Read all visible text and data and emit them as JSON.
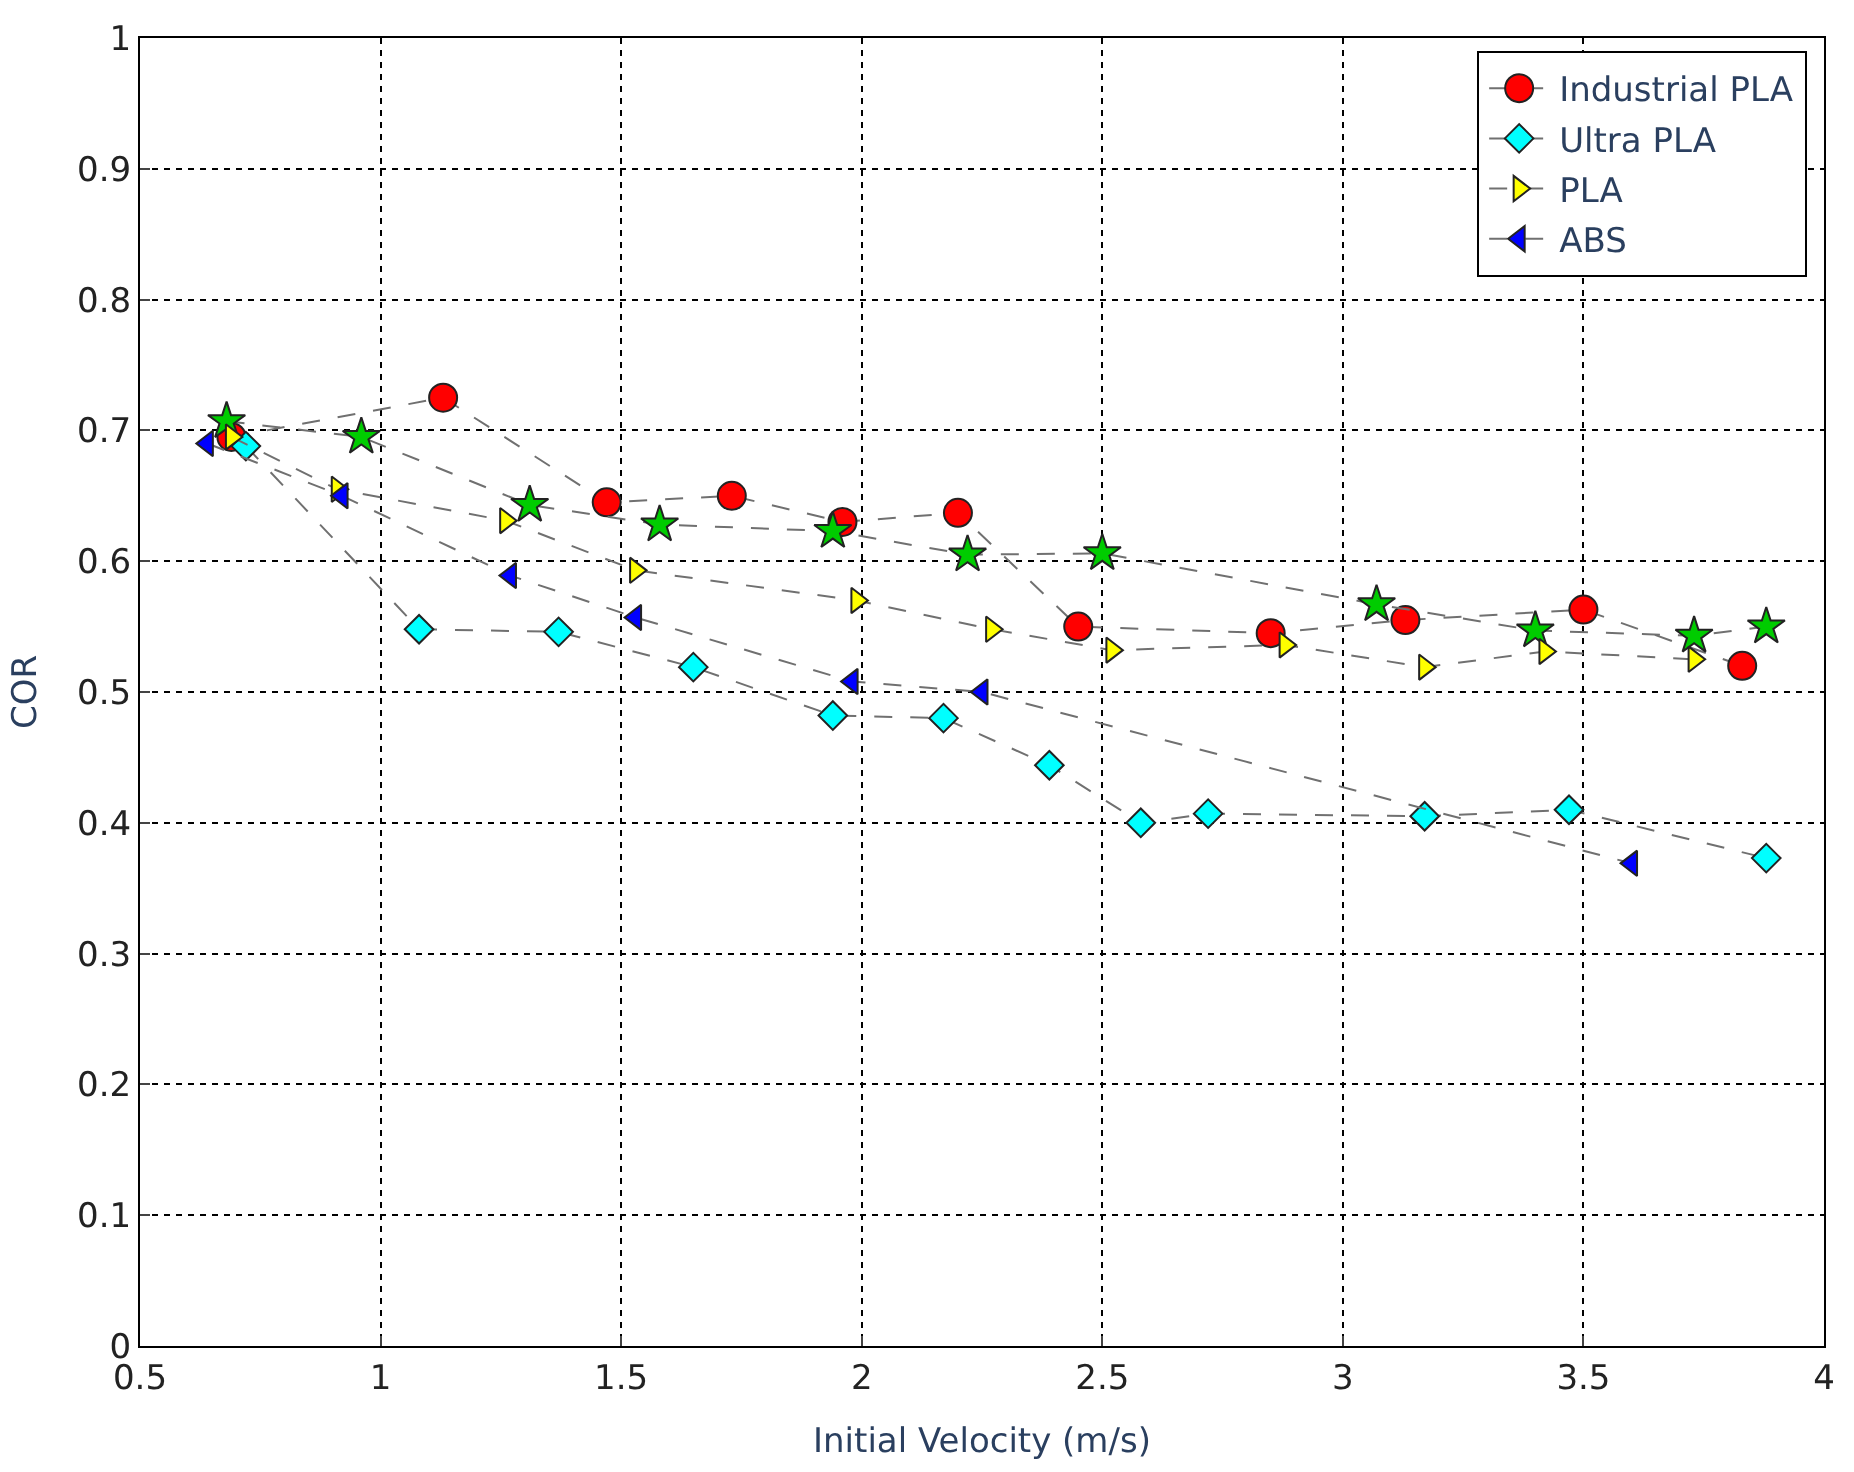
{
  "chart_data": {
    "type": "line",
    "xlabel": "Initial Velocity (m/s)",
    "ylabel": "COR",
    "xlim": [
      0.5,
      4
    ],
    "xticks": [
      0.5,
      1,
      1.5,
      2,
      2.5,
      3,
      3.5,
      4
    ],
    "ylim": [
      0,
      1
    ],
    "yticks": [
      0,
      0.1,
      0.2,
      0.3,
      0.4,
      0.5,
      0.6,
      0.7,
      0.8,
      0.9,
      1
    ],
    "grid": true,
    "legend": "top right",
    "line_style": "dashed",
    "series": [
      {
        "name": "Industrial PLA",
        "color": "#ff0000",
        "marker": "circle",
        "x": [
          0.69,
          1.13,
          1.47,
          1.73,
          1.96,
          2.2,
          2.45,
          2.85,
          3.13,
          3.5,
          3.83
        ],
        "values": [
          0.695,
          0.725,
          0.645,
          0.65,
          0.63,
          0.637,
          0.55,
          0.545,
          0.555,
          0.563,
          0.52
        ]
      },
      {
        "name": "Ultra PLA",
        "color": "#00ffff",
        "marker": "diamond",
        "x": [
          0.72,
          1.08,
          1.37,
          1.65,
          1.94,
          2.17,
          2.39,
          2.58,
          2.72,
          3.17,
          3.47,
          3.88
        ],
        "values": [
          0.688,
          0.548,
          0.546,
          0.519,
          0.482,
          0.48,
          0.444,
          0.4,
          0.407,
          0.405,
          0.41,
          0.373
        ]
      },
      {
        "color": "#00cc00",
        "marker": "star",
        "x": [
          0.68,
          0.96,
          1.31,
          1.58,
          1.94,
          2.22,
          2.5,
          3.07,
          3.4,
          3.73,
          3.88
        ],
        "values": [
          0.707,
          0.695,
          0.643,
          0.628,
          0.623,
          0.605,
          0.606,
          0.567,
          0.547,
          0.543,
          0.55
        ]
      },
      {
        "name": "PLA",
        "color": "#ffff00",
        "marker": "triangle-right",
        "x": [
          0.69,
          0.91,
          1.26,
          1.53,
          1.99,
          2.27,
          2.52,
          2.88,
          3.17,
          3.42,
          3.73
        ],
        "values": [
          0.695,
          0.655,
          0.631,
          0.593,
          0.57,
          0.548,
          0.532,
          0.536,
          0.519,
          0.531,
          0.525
        ]
      },
      {
        "name": "ABS",
        "color": "#0000ff",
        "marker": "triangle-left",
        "x": [
          0.64,
          0.92,
          1.27,
          1.53,
          1.98,
          2.25,
          3.6
        ],
        "values": [
          0.69,
          0.65,
          0.589,
          0.557,
          0.508,
          0.5,
          0.369
        ]
      }
    ]
  }
}
